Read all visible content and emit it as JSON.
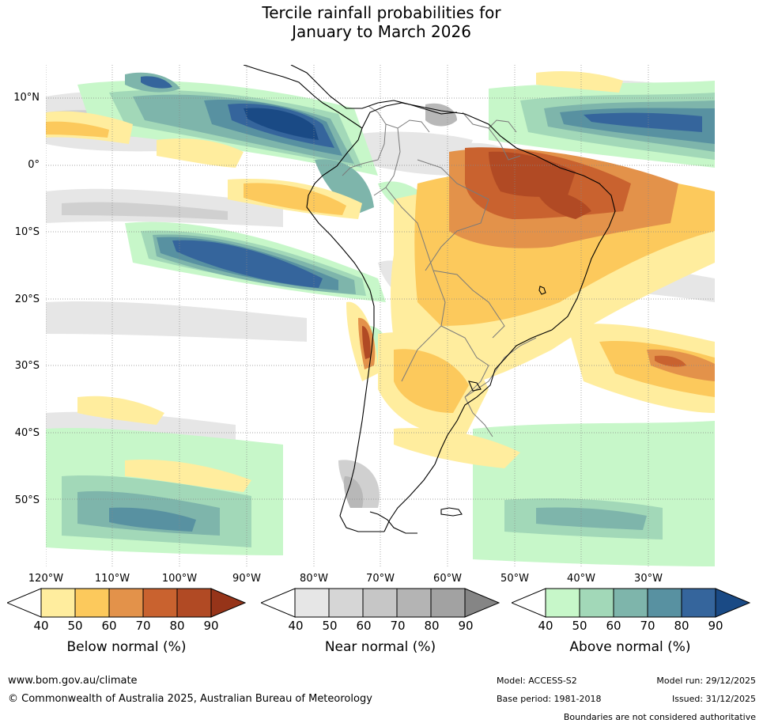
{
  "title": {
    "line1": "Tercile rainfall probabilities for",
    "line2": "January to March 2026"
  },
  "map": {
    "region": "South America",
    "lat_labels": [
      "10°N",
      "0°",
      "10°S",
      "20°S",
      "30°S",
      "40°S",
      "50°S"
    ],
    "lon_labels": [
      "120°W",
      "110°W",
      "100°W",
      "90°W",
      "80°W",
      "70°W",
      "60°W",
      "50°W",
      "40°W",
      "30°W"
    ]
  },
  "legends": [
    {
      "label": "Below normal (%)",
      "ticks": [
        "40",
        "50",
        "60",
        "70",
        "80",
        "90"
      ],
      "colors": [
        "#ffed9e",
        "#fcc95c",
        "#e3924a",
        "#c9622f",
        "#b14a24",
        "#963419"
      ]
    },
    {
      "label": "Near normal (%)",
      "ticks": [
        "40",
        "50",
        "60",
        "70",
        "80",
        "90"
      ],
      "colors": [
        "#e6e6e6",
        "#d6d6d6",
        "#c6c6c6",
        "#b4b4b4",
        "#a2a2a2",
        "#858585"
      ]
    },
    {
      "label": "Above normal (%)",
      "ticks": [
        "40",
        "50",
        "60",
        "70",
        "80",
        "90"
      ],
      "colors": [
        "#c7f7c9",
        "#a2d8b8",
        "#7eb5ab",
        "#5891a1",
        "#35659c",
        "#1a4a85"
      ]
    }
  ],
  "colors": {
    "below": [
      "#ffed9e",
      "#fcc95c",
      "#e3924a",
      "#c9622f",
      "#b14a24"
    ],
    "near": [
      "#e6e6e6",
      "#d0d0d0",
      "#b8b8b8"
    ],
    "above": [
      "#c7f7c9",
      "#a2d8b8",
      "#7eb5ab",
      "#5891a1",
      "#35659c",
      "#1a4a85"
    ],
    "border": "#7a7a7a",
    "coast": "#000000"
  },
  "footer": {
    "website": "www.bom.gov.au/climate",
    "copyright": "© Commonwealth of Australia 2025, Australian Bureau of Meteorology",
    "model": "Model: ACCESS-S2",
    "base_period": "Base period: 1981-2018",
    "model_run": "Model run: 29/12/2025",
    "issued": "Issued: 31/12/2025",
    "disclaimer": "Boundaries are not considered authoritative"
  }
}
